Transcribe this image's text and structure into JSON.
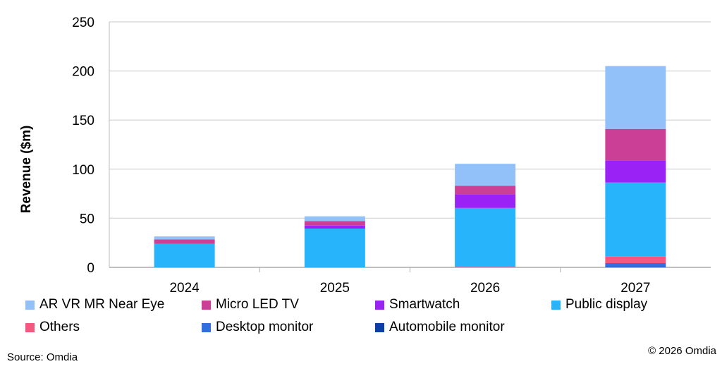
{
  "chart_data": {
    "type": "bar",
    "stacked": true,
    "categories": [
      "2024",
      "2025",
      "2026",
      "2027"
    ],
    "ylabel": "Revenue ($m)",
    "xlabel": "",
    "ylim": [
      0,
      250
    ],
    "yticks": [
      0,
      50,
      100,
      150,
      200,
      250
    ],
    "grid": true,
    "legend_placement": "bottom",
    "series": [
      {
        "name": "Automobile monitor",
        "color": "#0b3fa8",
        "values": [
          0,
          0,
          0,
          0.5
        ]
      },
      {
        "name": "Desktop monitor",
        "color": "#2f6fe0",
        "values": [
          0,
          0,
          0,
          3.8
        ]
      },
      {
        "name": "Others",
        "color": "#f5577f",
        "values": [
          0,
          0,
          0.5,
          6.7
        ]
      },
      {
        "name": "Public display",
        "color": "#27b4fb",
        "values": [
          24,
          39.5,
          60,
          75.4
        ]
      },
      {
        "name": "Smartwatch",
        "color": "#9a22f5",
        "values": [
          0,
          3,
          14,
          22.6
        ]
      },
      {
        "name": "Micro LED TV",
        "color": "#cc3f96",
        "values": [
          4.5,
          4.7,
          8.5,
          32
        ]
      },
      {
        "name": "AR VR MR Near Eye",
        "color": "#92c1f9",
        "values": [
          3,
          4.8,
          22.5,
          64
        ]
      }
    ],
    "legend_order": [
      "AR VR MR Near Eye",
      "Micro LED TV",
      "Smartwatch",
      "Public display",
      "Others",
      "Desktop monitor",
      "Automobile monitor"
    ]
  },
  "source": "Source: Omdia",
  "copyright": "© 2026 Omdia"
}
